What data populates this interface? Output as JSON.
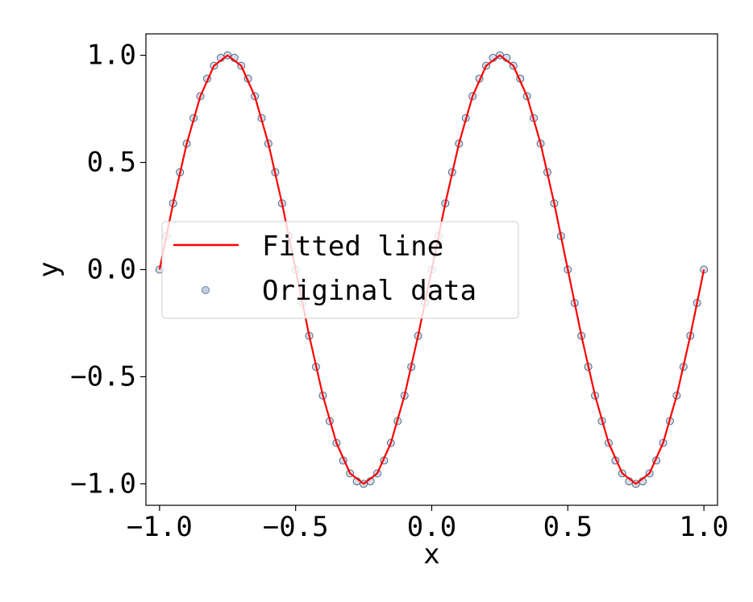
{
  "chart_data": {
    "type": "scatter",
    "xlabel": "x",
    "ylabel": "y",
    "xlim": [
      -1.05,
      1.05
    ],
    "ylim": [
      -1.1,
      1.1
    ],
    "x_ticks": [
      -1.0,
      -0.5,
      0.0,
      0.5,
      1.0
    ],
    "x_tick_labels": [
      "−1.0",
      "−0.5",
      "0.0",
      "0.5",
      "1.0"
    ],
    "y_ticks": [
      -1.0,
      -0.5,
      0.0,
      0.5,
      1.0
    ],
    "y_tick_labels": [
      "−1.0",
      "−0.5",
      "0.0",
      "0.5",
      "1.0"
    ],
    "grid": false,
    "legend": {
      "placement": "center-left"
    },
    "series": [
      {
        "name": "Fitted line",
        "kind": "line",
        "color": "#ff0000",
        "x": [
          -1.0,
          -0.95,
          -0.9,
          -0.85,
          -0.8,
          -0.75,
          -0.7,
          -0.65,
          -0.6,
          -0.55,
          -0.5,
          -0.45,
          -0.4,
          -0.35,
          -0.3,
          -0.25,
          -0.2,
          -0.15,
          -0.1,
          -0.05,
          0.0,
          0.05,
          0.1,
          0.15,
          0.2,
          0.25,
          0.3,
          0.35,
          0.4,
          0.45,
          0.5,
          0.55,
          0.6,
          0.65,
          0.7,
          0.75,
          0.8,
          0.85,
          0.9,
          0.95,
          1.0
        ],
        "y": [
          0.0,
          0.309,
          0.588,
          0.809,
          0.951,
          1.0,
          0.951,
          0.809,
          0.588,
          0.309,
          0.0,
          -0.309,
          -0.588,
          -0.809,
          -0.951,
          -1.0,
          -0.951,
          -0.809,
          -0.588,
          -0.309,
          0.0,
          0.309,
          0.588,
          0.809,
          0.951,
          1.0,
          0.951,
          0.809,
          0.588,
          0.309,
          0.0,
          -0.309,
          -0.588,
          -0.809,
          -0.951,
          -1.0,
          -0.951,
          -0.809,
          -0.588,
          -0.309,
          0.0
        ]
      },
      {
        "name": "Original data",
        "kind": "scatter",
        "color": "#b0c4de",
        "edge_color": "#1f3a5a",
        "x": [
          -1.0,
          -0.975,
          -0.95,
          -0.925,
          -0.9,
          -0.875,
          -0.85,
          -0.825,
          -0.8,
          -0.775,
          -0.75,
          -0.725,
          -0.7,
          -0.675,
          -0.65,
          -0.625,
          -0.6,
          -0.575,
          -0.55,
          -0.525,
          -0.5,
          -0.475,
          -0.45,
          -0.425,
          -0.4,
          -0.375,
          -0.35,
          -0.325,
          -0.3,
          -0.275,
          -0.25,
          -0.225,
          -0.2,
          -0.175,
          -0.15,
          -0.125,
          -0.1,
          -0.075,
          -0.05,
          -0.025,
          0.0,
          0.025,
          0.05,
          0.075,
          0.1,
          0.125,
          0.15,
          0.175,
          0.2,
          0.225,
          0.25,
          0.275,
          0.3,
          0.325,
          0.35,
          0.375,
          0.4,
          0.425,
          0.45,
          0.475,
          0.5,
          0.525,
          0.55,
          0.575,
          0.6,
          0.625,
          0.65,
          0.675,
          0.7,
          0.725,
          0.75,
          0.775,
          0.8,
          0.825,
          0.85,
          0.875,
          0.9,
          0.925,
          0.95,
          0.975,
          1.0
        ],
        "y": [
          0.0,
          0.156,
          0.309,
          0.454,
          0.588,
          0.707,
          0.809,
          0.891,
          0.951,
          0.988,
          1.0,
          0.988,
          0.951,
          0.891,
          0.809,
          0.707,
          0.588,
          0.454,
          0.309,
          0.156,
          0.0,
          -0.156,
          -0.309,
          -0.454,
          -0.588,
          -0.707,
          -0.809,
          -0.891,
          -0.951,
          -0.988,
          -1.0,
          -0.988,
          -0.951,
          -0.891,
          -0.809,
          -0.707,
          -0.588,
          -0.454,
          -0.309,
          -0.156,
          0.0,
          0.156,
          0.309,
          0.454,
          0.588,
          0.707,
          0.809,
          0.891,
          0.951,
          0.988,
          1.0,
          0.988,
          0.951,
          0.891,
          0.809,
          0.707,
          0.588,
          0.454,
          0.309,
          0.156,
          0.0,
          -0.156,
          -0.309,
          -0.454,
          -0.588,
          -0.707,
          -0.809,
          -0.891,
          -0.951,
          -0.988,
          -1.0,
          -0.988,
          -0.951,
          -0.891,
          -0.809,
          -0.707,
          -0.588,
          -0.454,
          -0.309,
          -0.156,
          0.0
        ]
      }
    ]
  }
}
